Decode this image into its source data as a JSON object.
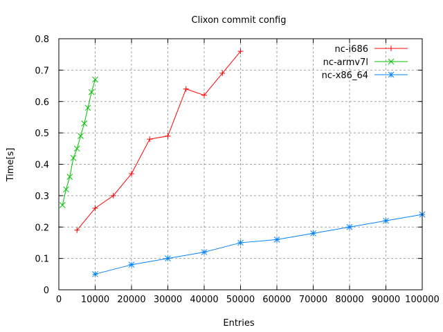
{
  "chart_data": {
    "type": "line",
    "title": "Clixon commit config",
    "xlabel": "Entries",
    "ylabel": "Time[s]",
    "xlim": [
      0,
      100000
    ],
    "ylim": [
      0,
      0.8
    ],
    "grid": true,
    "legend_position": "top-right",
    "xticks": [
      "0",
      "10000",
      "20000",
      "30000",
      "40000",
      "50000",
      "60000",
      "70000",
      "80000",
      "90000",
      "100000"
    ],
    "yticks": [
      "0",
      "0.1",
      "0.2",
      "0.3",
      "0.4",
      "0.5",
      "0.6",
      "0.7",
      "0.8"
    ],
    "series": [
      {
        "name": "nc-i686",
        "color": "#ff0000",
        "marker": "plus",
        "x": [
          5000,
          10000,
          15000,
          20000,
          25000,
          30000,
          35000,
          40000,
          45000,
          50000
        ],
        "y": [
          0.19,
          0.26,
          0.3,
          0.37,
          0.48,
          0.49,
          0.64,
          0.62,
          0.69,
          0.76
        ]
      },
      {
        "name": "nc-armv7l",
        "color": "#00c000",
        "marker": "cross",
        "x": [
          1000,
          2000,
          3000,
          4000,
          5000,
          6000,
          7000,
          8000,
          9000,
          10000
        ],
        "y": [
          0.27,
          0.32,
          0.36,
          0.42,
          0.45,
          0.49,
          0.53,
          0.58,
          0.63,
          0.67
        ]
      },
      {
        "name": "nc-x86_64",
        "color": "#0080ff",
        "marker": "star",
        "x": [
          10000,
          20000,
          30000,
          40000,
          50000,
          60000,
          70000,
          80000,
          90000,
          100000
        ],
        "y": [
          0.05,
          0.08,
          0.1,
          0.12,
          0.15,
          0.16,
          0.18,
          0.2,
          0.22,
          0.24
        ]
      }
    ]
  }
}
